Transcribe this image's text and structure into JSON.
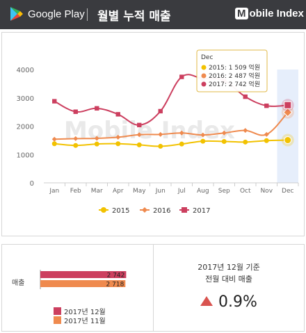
{
  "header": {
    "brand": "Google Play",
    "title": "월별 누적 매출",
    "right_logo_mark": "M",
    "right_logo_text": "obile Index"
  },
  "watermark": "Mobile Index",
  "chart_data": {
    "type": "line",
    "categories": [
      "Jan",
      "Feb",
      "Mar",
      "Apr",
      "May",
      "Jun",
      "Jul",
      "Aug",
      "Sep",
      "Oct",
      "Nov",
      "Dec"
    ],
    "ylim": [
      0,
      4000
    ],
    "yticks": [
      "0",
      "1000",
      "2000",
      "3000",
      "4000"
    ],
    "series": [
      {
        "name": "2015",
        "color": "#f2c200",
        "marker": "circle",
        "values": [
          1380,
          1320,
          1370,
          1380,
          1340,
          1290,
          1370,
          1470,
          1460,
          1440,
          1490,
          1509
        ]
      },
      {
        "name": "2016",
        "color": "#ef8a4e",
        "marker": "diamond",
        "values": [
          1540,
          1560,
          1570,
          1610,
          1700,
          1710,
          1760,
          1690,
          1760,
          1850,
          1710,
          2487
        ]
      },
      {
        "name": "2017",
        "color": "#cc3f5f",
        "marker": "square",
        "values": [
          2880,
          2510,
          2630,
          2420,
          2040,
          2530,
          3740,
          3680,
          3610,
          3040,
          2720,
          2742
        ]
      }
    ],
    "tooltip": {
      "title": "Dec",
      "lines": [
        "2015: 1 509 억원",
        "2016: 2 487 억원",
        "2017: 2 742 억원"
      ]
    },
    "highlight_category": "Dec"
  },
  "bar_panel": {
    "row_label": "매출",
    "bars": [
      {
        "label": "2 742",
        "value": 2742,
        "color": "#cc3f5f"
      },
      {
        "label": "2 718",
        "value": 2718,
        "color": "#ef8a4e"
      }
    ],
    "legend": [
      {
        "label": "2017년 12월",
        "color": "#cc3f5f"
      },
      {
        "label": "2017년 11월",
        "color": "#ef8a4e"
      }
    ]
  },
  "summary": {
    "line1": "2017년  12월 기준",
    "line2": "전월 대비 매출",
    "change": "0.9%",
    "direction_color": "#d9534f"
  }
}
